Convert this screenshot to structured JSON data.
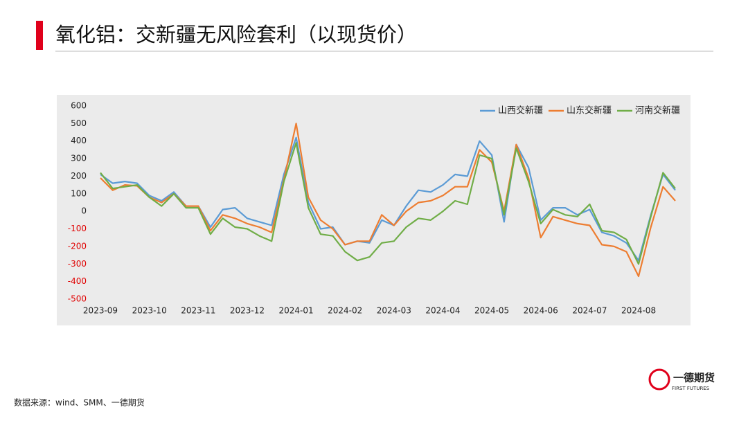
{
  "header": {
    "title": "氧化铝：交新疆无风险套利（以现货价）"
  },
  "chart_data": {
    "type": "line",
    "categories": [
      "2023-09",
      null,
      null,
      null,
      "2023-10",
      null,
      null,
      null,
      "2023-11",
      null,
      null,
      null,
      "2023-12",
      null,
      null,
      null,
      "2024-01",
      null,
      null,
      null,
      "2024-02",
      null,
      null,
      null,
      "2024-03",
      null,
      null,
      null,
      "2024-04",
      null,
      null,
      null,
      "2024-05",
      null,
      null,
      null,
      "2024-06",
      null,
      null,
      null,
      "2024-07",
      null,
      null,
      null,
      "2024-08",
      null,
      null,
      null
    ],
    "series": [
      {
        "name": "山西交新疆",
        "color": "#5b9bd5",
        "values": [
          210,
          160,
          170,
          160,
          90,
          60,
          110,
          30,
          30,
          -90,
          10,
          20,
          -40,
          -60,
          -80,
          210,
          420,
          50,
          -100,
          -90,
          -190,
          -170,
          -180,
          -50,
          -80,
          30,
          120,
          110,
          150,
          210,
          200,
          400,
          320,
          -60,
          380,
          250,
          -50,
          20,
          20,
          -20,
          10,
          -120,
          -140,
          -180,
          -280,
          -20,
          210,
          120
        ]
      },
      {
        "name": "山东交新疆",
        "color": "#ed7d31",
        "values": [
          190,
          120,
          150,
          145,
          80,
          50,
          100,
          30,
          30,
          -110,
          -20,
          -40,
          -70,
          -90,
          -120,
          180,
          500,
          80,
          -50,
          -100,
          -190,
          -170,
          -170,
          -20,
          -80,
          0,
          50,
          60,
          90,
          140,
          140,
          350,
          280,
          0,
          380,
          190,
          -150,
          -30,
          -50,
          -70,
          -80,
          -190,
          -200,
          -230,
          -370,
          -90,
          140,
          60
        ]
      },
      {
        "name": "河南交新疆",
        "color": "#70ad47",
        "values": [
          220,
          130,
          140,
          150,
          80,
          30,
          100,
          20,
          20,
          -130,
          -40,
          -90,
          -100,
          -140,
          -170,
          170,
          390,
          20,
          -130,
          -140,
          -230,
          -280,
          -260,
          -180,
          -170,
          -90,
          -40,
          -50,
          0,
          60,
          40,
          320,
          300,
          -20,
          360,
          170,
          -70,
          10,
          -20,
          -30,
          40,
          -110,
          -120,
          -160,
          -300,
          -30,
          220,
          130
        ]
      }
    ],
    "ylim": [
      -500,
      600
    ],
    "yticks": [
      -500,
      -400,
      -300,
      -200,
      -100,
      0,
      100,
      200,
      300,
      400,
      500,
      600
    ],
    "negative_tick_color": "#e00000",
    "legend": "upper right",
    "grid": false
  },
  "footer": {
    "source": "数据来源：wind、SMM、一德期货",
    "logo_name": "一德期货",
    "logo_sub": "FIRST FUTURES"
  }
}
